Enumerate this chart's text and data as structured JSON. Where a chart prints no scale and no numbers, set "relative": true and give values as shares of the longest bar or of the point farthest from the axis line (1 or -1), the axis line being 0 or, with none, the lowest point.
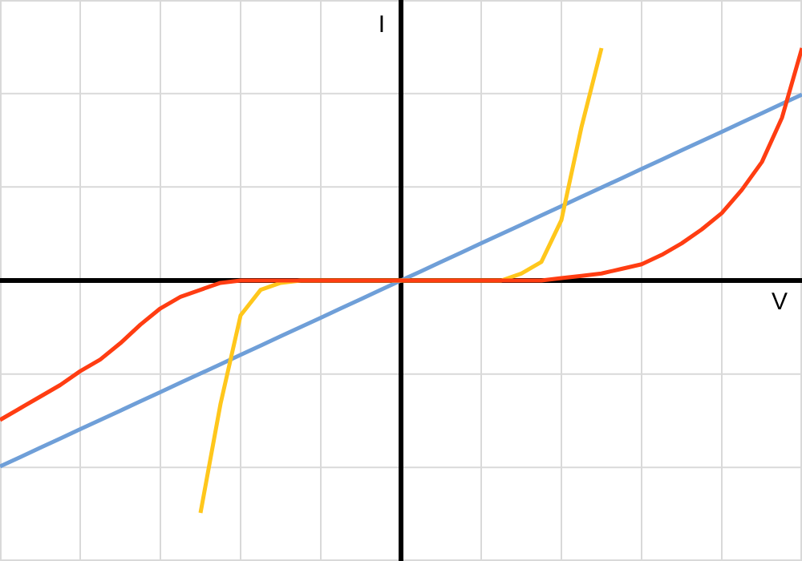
{
  "chart_data": {
    "type": "line",
    "xlabel": "V",
    "ylabel": "I",
    "relative": true,
    "grid": true,
    "marker": "none",
    "line_style": "solid",
    "categories": [
      null,
      null,
      null,
      null,
      null,
      null,
      null,
      null,
      null,
      null,
      null,
      null,
      null,
      null,
      null,
      null,
      null,
      null,
      null,
      null,
      null,
      null,
      null,
      null,
      null,
      null,
      null,
      null,
      null,
      null,
      null,
      null,
      null,
      null,
      null,
      null,
      null,
      null,
      null,
      null,
      null
    ],
    "series": [
      {
        "color": "#6f9fd8",
        "values": [
          -0.8,
          -0.76,
          -0.72,
          -0.68,
          -0.64,
          -0.6,
          -0.56,
          -0.52,
          -0.48,
          -0.44,
          -0.4,
          -0.36,
          -0.32,
          -0.28,
          -0.24,
          -0.2,
          -0.16,
          -0.12,
          -0.08,
          -0.04,
          0,
          0.04,
          0.08,
          0.12,
          0.16,
          0.2,
          0.24,
          0.28,
          0.32,
          0.36,
          0.4,
          0.44,
          0.48,
          0.52,
          0.56,
          0.6,
          0.64,
          0.68,
          0.72,
          0.76,
          0.8
        ]
      },
      {
        "color": "#ffc71c",
        "values": [
          null,
          null,
          null,
          null,
          null,
          null,
          null,
          null,
          null,
          null,
          -1,
          -0.53,
          -0.15,
          -0.04,
          -0.01,
          0,
          0,
          0,
          0,
          0,
          0,
          0,
          0,
          0,
          0,
          0,
          0.03,
          0.08,
          0.26,
          0.66,
          1,
          null,
          null,
          null,
          null,
          null,
          null,
          null,
          null,
          null,
          null
        ]
      },
      {
        "color": "#ff3d12",
        "values": [
          -0.6,
          -0.55,
          -0.5,
          -0.45,
          -0.39,
          -0.34,
          -0.27,
          -0.19,
          -0.12,
          -0.07,
          -0.04,
          -0.01,
          0,
          0,
          0,
          0,
          0,
          0,
          0,
          0,
          0,
          0,
          0,
          0,
          0,
          0,
          0,
          0,
          0.01,
          0.02,
          0.03,
          0.05,
          0.07,
          0.11,
          0.16,
          0.22,
          0.29,
          0.39,
          0.51,
          0.7,
          1
        ]
      }
    ]
  }
}
